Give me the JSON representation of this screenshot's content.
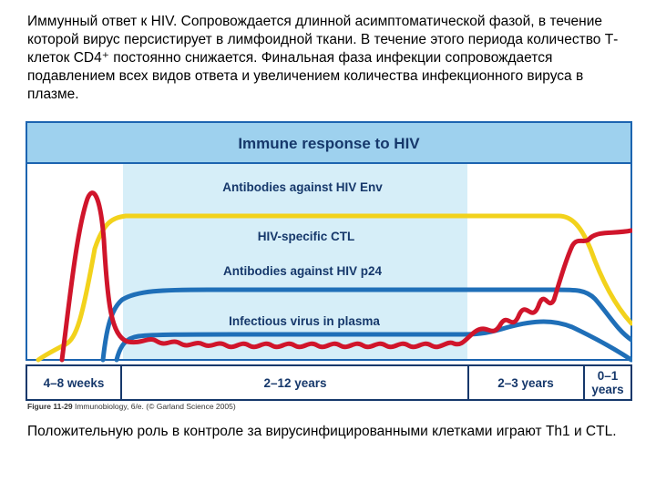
{
  "intro_text": "Иммунный ответ к HIV. Сопровождается длинной асимптоматической фазой, в течение которой вирус персистирует в лимфоидной ткани. В течение этого периода количество Т-клеток CD4⁺ постоянно снижается. Финальная фаза инфекции сопровождается подавлением всех видов ответа и увеличением количества инфекционного вируса в плазме.",
  "diagram": {
    "title": "Immune response to HIV",
    "curves": [
      {
        "label": "Antibodies against HIV Env",
        "color": "#1f6fb8"
      },
      {
        "label": "HIV-specific CTL",
        "color": "#f2d21c"
      },
      {
        "label": "Antibodies against HIV p24",
        "color": "#1f6fb8"
      },
      {
        "label": "Infectious virus in plasma",
        "color": "#d0152b"
      }
    ],
    "phases": [
      {
        "label": "4–8 weeks"
      },
      {
        "label": "2–12 years"
      },
      {
        "label": "2–3 years"
      },
      {
        "label": "0–1 years",
        "line1": "0–1",
        "line2": "years"
      }
    ],
    "colors": {
      "header": "#9ed1ee",
      "plot_bg": "#d6eef8",
      "frame": "#1c64b0",
      "body_bg": "#ffffff"
    }
  },
  "caption": {
    "figure_id": "Figure 11-29",
    "text": "Immunobiology, 6/e. (© Garland Science 2005)"
  },
  "outro_text": "Положительную роль в контроле за вирусинфицированными клетками играют Th1 и CTL."
}
